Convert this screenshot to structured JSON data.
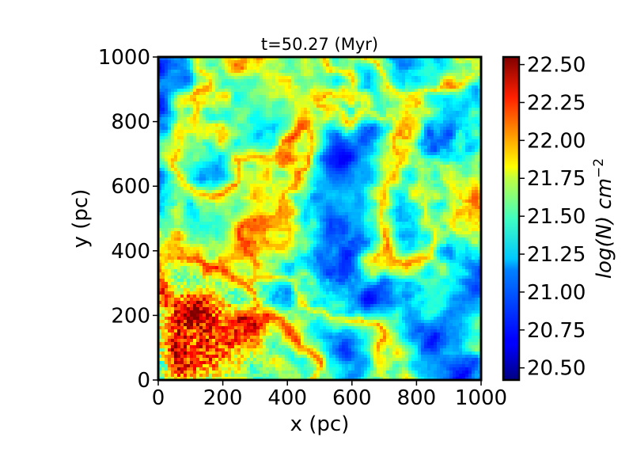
{
  "chart_data": {
    "type": "heatmap",
    "title": "t=50.27 (Myr)",
    "xlabel": "x (pc)",
    "ylabel": "y (pc)",
    "xlim": [
      0,
      1000
    ],
    "ylim": [
      0,
      1000
    ],
    "xticks": [
      "0",
      "200",
      "400",
      "600",
      "800",
      "1000"
    ],
    "yticks": [
      "0",
      "200",
      "400",
      "600",
      "800",
      "1000"
    ],
    "colorbar": {
      "label_base": "log(N) cm",
      "label_exponent": "−2",
      "colormap": "jet",
      "range": [
        20.42,
        22.55
      ],
      "ticks": [
        "20.50",
        "20.75",
        "21.00",
        "21.25",
        "21.50",
        "21.75",
        "22.00",
        "22.25",
        "22.50"
      ]
    },
    "field_description": "Turbulent filamentary column density map; higher values concentrated in the lower-left region (x<400, y<450)."
  }
}
